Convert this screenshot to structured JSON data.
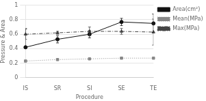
{
  "chart_data": {
    "type": "line",
    "categories": [
      "IS",
      "SR",
      "SI",
      "SE",
      "TE"
    ],
    "series": [
      {
        "name": "Area(cm²)",
        "color": "#111111",
        "marker": "circle",
        "line_style": "solid",
        "values": [
          0.42,
          0.53,
          0.6,
          0.77,
          0.75
        ],
        "yerr_low": [
          0.0,
          0.05,
          0.05,
          0.05,
          0.13
        ],
        "yerr_high": [
          0.26,
          0.05,
          0.05,
          0.05,
          0.13
        ]
      },
      {
        "name": "Mean(MPa)",
        "color": "#888888",
        "marker": "square",
        "line_style": "dotted",
        "values": [
          0.23,
          0.25,
          0.26,
          0.27,
          0.27
        ],
        "yerr_low": [
          0.0,
          0.0,
          0.0,
          0.0,
          0.0
        ],
        "yerr_high": [
          0.0,
          0.0,
          0.0,
          0.0,
          0.0
        ]
      },
      {
        "name": "Max(MPa)",
        "color": "#444444",
        "marker": "triangle",
        "line_style": "dashdot",
        "values": [
          0.6,
          0.62,
          0.64,
          0.64,
          0.63
        ],
        "yerr_low": [
          0.07,
          0.02,
          0.06,
          0.04,
          0.18
        ],
        "yerr_high": [
          0.07,
          0.02,
          0.06,
          0.04,
          0.18
        ]
      }
    ],
    "xlabel": "Procedure",
    "ylabel": "Pressure & Area",
    "ylim": [
      0,
      1.0
    ],
    "yticks": [
      0,
      0.2,
      0.4,
      0.6,
      0.8,
      1
    ],
    "grid": true,
    "legend": "right"
  }
}
